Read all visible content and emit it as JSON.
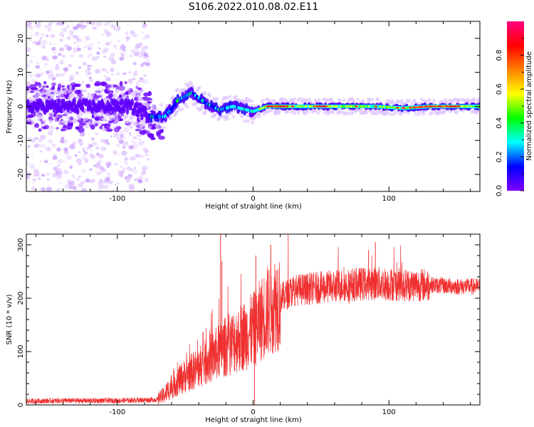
{
  "figure": {
    "title": "S106.2022.010.08.02.E11"
  },
  "chart_data": [
    {
      "type": "heatmap",
      "title": "",
      "xlabel": "Height of straight line (km)",
      "ylabel": "Frequency (Hz)",
      "xlim": [
        -167,
        167
      ],
      "ylim": [
        -25,
        25
      ],
      "x_ticks": [
        -100,
        0,
        100
      ],
      "y_ticks": [
        -20,
        -10,
        0,
        10,
        20
      ],
      "colorbar": {
        "label": "Normalized spectral amplitude",
        "range": [
          0,
          1
        ],
        "ticks": [
          0.0,
          0.2,
          0.4,
          0.6,
          0.8
        ],
        "colormap": [
          "#7f00ff",
          "#0000ff",
          "#00ffff",
          "#00ff00",
          "#ffff00",
          "#ff8000",
          "#ff0000",
          "#ff0080"
        ]
      },
      "ridge": {
        "description_points_x": [
          -167,
          -120,
          -90,
          -75,
          -65,
          -55,
          -45,
          -35,
          -25,
          -15,
          -5,
          0,
          10,
          30,
          50,
          70,
          90,
          110,
          130,
          150,
          167
        ],
        "description_points_freq": [
          0,
          0,
          0,
          -3,
          -3,
          2,
          4,
          1,
          -1,
          0,
          -1,
          -1.5,
          0,
          0,
          0,
          0,
          0,
          -0.5,
          0,
          0,
          0
        ],
        "peak_segments_x": [
          [
            10,
            25
          ],
          [
            45,
            55
          ],
          [
            120,
            150
          ]
        ],
        "scatter_extent_x": [
          -167,
          -77
        ]
      }
    },
    {
      "type": "line",
      "title": "",
      "xlabel": "Height of straight line (km)",
      "ylabel": "SNR (10 * v/v)",
      "xlim": [
        -167,
        167
      ],
      "ylim": [
        0,
        320
      ],
      "x_ticks": [
        -100,
        0,
        100
      ],
      "y_ticks": [
        0,
        100,
        200,
        300
      ],
      "series": [
        {
          "color": "#f03030",
          "envelope_x": [
            -167,
            -140,
            -100,
            -70,
            -65,
            -60,
            -50,
            -40,
            -30,
            -20,
            -10,
            0,
            10,
            20,
            30,
            50,
            70,
            90,
            110,
            130,
            150,
            167
          ],
          "envelope_mean": [
            7,
            8,
            8,
            10,
            20,
            35,
            55,
            70,
            90,
            110,
            125,
            140,
            175,
            200,
            215,
            220,
            225,
            228,
            225,
            225,
            222,
            222
          ],
          "spikes": [
            {
              "x": -24,
              "y": 320
            },
            {
              "x": -23,
              "y": 270
            },
            {
              "x": 13,
              "y": 300
            },
            {
              "x": 2,
              "y": 280
            },
            {
              "x": 90,
              "y": 305
            },
            {
              "x": 85,
              "y": 290
            },
            {
              "x": 1,
              "y": 0
            }
          ]
        }
      ]
    }
  ]
}
